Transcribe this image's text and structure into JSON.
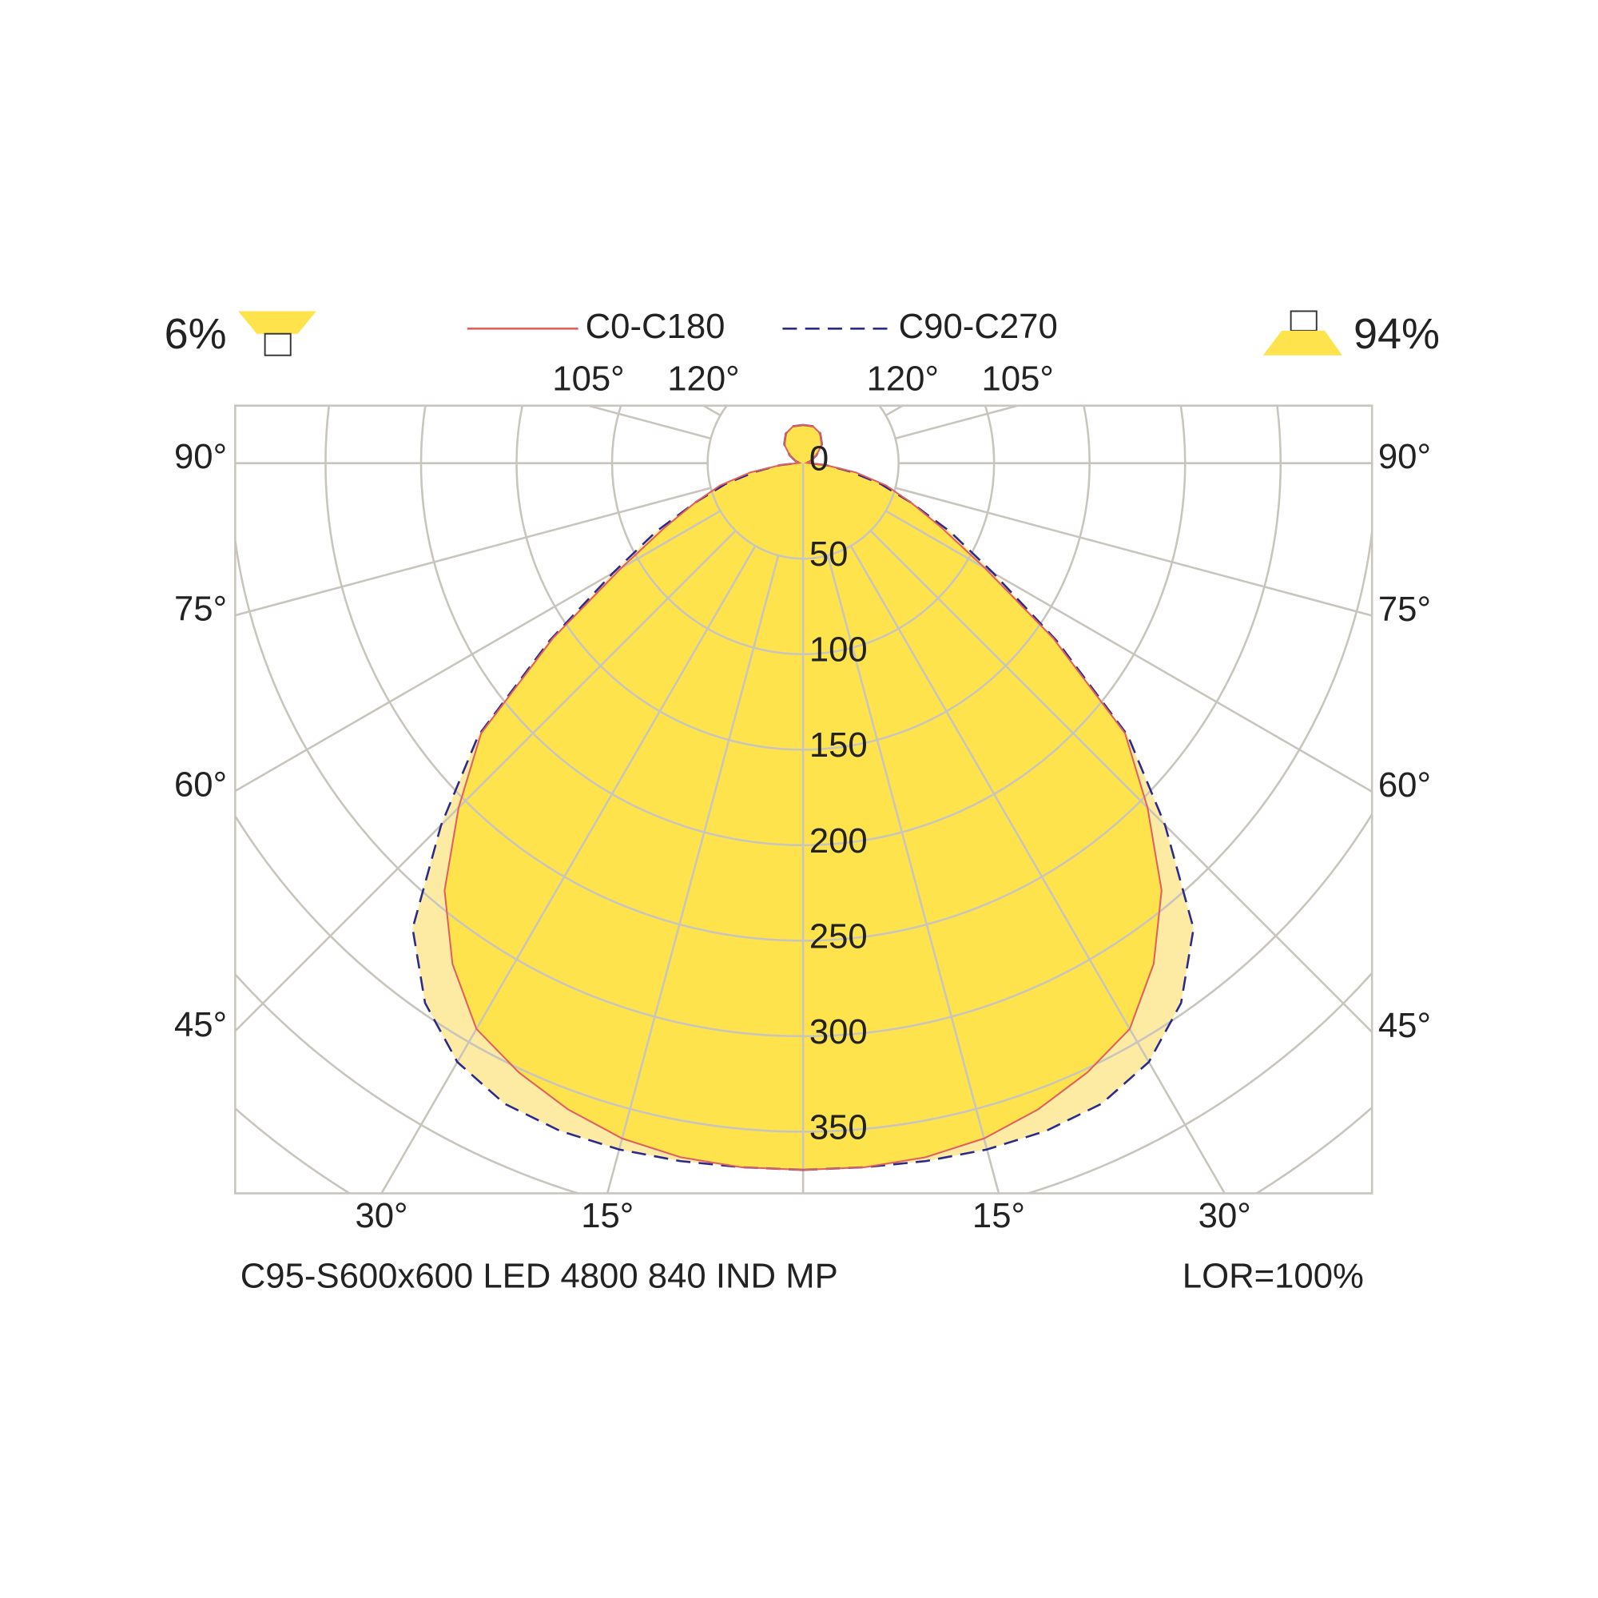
{
  "chart_data": {
    "type": "polar",
    "angles": [
      0,
      5,
      10,
      15,
      20,
      25,
      30,
      35,
      40,
      45,
      50,
      55,
      60,
      65,
      70,
      75,
      80,
      85,
      90,
      95,
      105,
      120,
      135,
      150,
      165,
      180
    ],
    "series": [
      {
        "name": "C90-C270",
        "color": "#2a2a8c",
        "fill": "#feeba3",
        "dashed": true,
        "values": [
          370,
          370,
          371,
          372,
          372,
          370,
          362,
          345,
          318,
          268,
          222,
          162,
          115,
          85,
          60,
          42,
          25,
          12,
          3,
          2,
          4,
          8,
          14,
          18,
          20,
          20
        ]
      },
      {
        "name": "C0-C180",
        "color": "#e06060",
        "fill": "#ffe34d",
        "dashed": false,
        "values": [
          370,
          370,
          369,
          366,
          360,
          352,
          342,
          320,
          292,
          255,
          220,
          160,
          110,
          80,
          60,
          45,
          28,
          12,
          3,
          2,
          4,
          8,
          14,
          18,
          20,
          20
        ]
      }
    ],
    "rlim": [
      0,
      400
    ],
    "rticks": [
      0,
      50,
      100,
      150,
      200,
      250,
      300,
      350,
      400,
      450
    ],
    "angle_ticks": [
      {
        "value": 15,
        "label": "15°"
      },
      {
        "value": 30,
        "label": "30°"
      },
      {
        "value": 45,
        "label": "45°"
      },
      {
        "value": 60,
        "label": "60°"
      },
      {
        "value": 75,
        "label": "75°"
      },
      {
        "value": 90,
        "label": "90°"
      },
      {
        "value": 105,
        "label": "105°"
      },
      {
        "value": 120,
        "label": "120°"
      }
    ],
    "upward_label": "6%",
    "downward_label": "94%",
    "title": "C95-S600x600 LED 4800 840 IND MP",
    "lor_label": "LOR=100%"
  }
}
